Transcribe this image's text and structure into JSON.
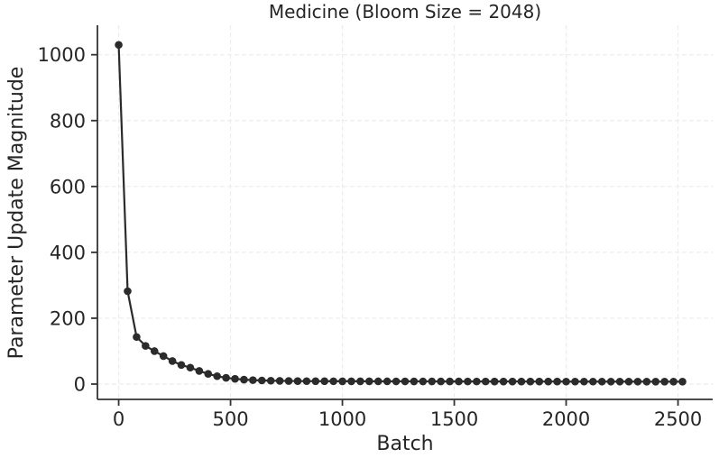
{
  "chart_data": {
    "type": "line",
    "title": "Medicine (Bloom Size = 2048)",
    "xlabel": "Batch",
    "ylabel": "Parameter Update Magnitude",
    "series": [
      {
        "name": "parameter-update-magnitude",
        "x": [
          0,
          40,
          80,
          120,
          160,
          200,
          240,
          280,
          320,
          360,
          400,
          440,
          480,
          520,
          560,
          600,
          640,
          680,
          720,
          760,
          800,
          840,
          880,
          920,
          960,
          1000,
          1040,
          1080,
          1120,
          1160,
          1200,
          1240,
          1280,
          1320,
          1360,
          1400,
          1440,
          1480,
          1520,
          1560,
          1600,
          1640,
          1680,
          1720,
          1760,
          1800,
          1840,
          1880,
          1920,
          1960,
          2000,
          2040,
          2080,
          2120,
          2160,
          2200,
          2240,
          2280,
          2320,
          2360,
          2400,
          2440,
          2480,
          2520
        ],
        "values": [
          1030,
          282,
          143,
          116,
          100,
          85,
          70,
          58,
          50,
          40,
          31,
          24,
          19,
          16,
          13.5,
          12,
          11,
          10.3,
          9.8,
          9.4,
          9.1,
          8.9,
          8.8,
          8.7,
          8.6,
          8.5,
          8.5,
          8.4,
          8.4,
          8.3,
          8.3,
          8.2,
          8.2,
          8.1,
          8.1,
          8.1,
          8.0,
          8.0,
          8.0,
          7.9,
          7.9,
          7.9,
          7.8,
          7.8,
          7.8,
          7.8,
          7.7,
          7.7,
          7.7,
          7.7,
          7.6,
          7.6,
          7.6,
          7.6,
          7.5,
          7.5,
          7.5,
          7.5,
          7.5,
          7.4,
          7.4,
          7.4,
          7.4,
          7.4
        ]
      }
    ],
    "xticks": [
      0,
      500,
      1000,
      1500,
      2000,
      2500
    ],
    "yticks": [
      0,
      200,
      400,
      600,
      800,
      1000
    ],
    "xlim": [
      -95,
      2655
    ],
    "ylim": [
      -46.5,
      1089.5
    ],
    "grid": true,
    "grid_style": "dashed",
    "legend_position": "none",
    "line_color": "#2b2b2b",
    "marker": "circle",
    "marker_color": "#2b2b2b",
    "grid_color": "#ececec",
    "spine_color": "#333333",
    "tick_color": "#333333",
    "text_color": "#262626"
  }
}
